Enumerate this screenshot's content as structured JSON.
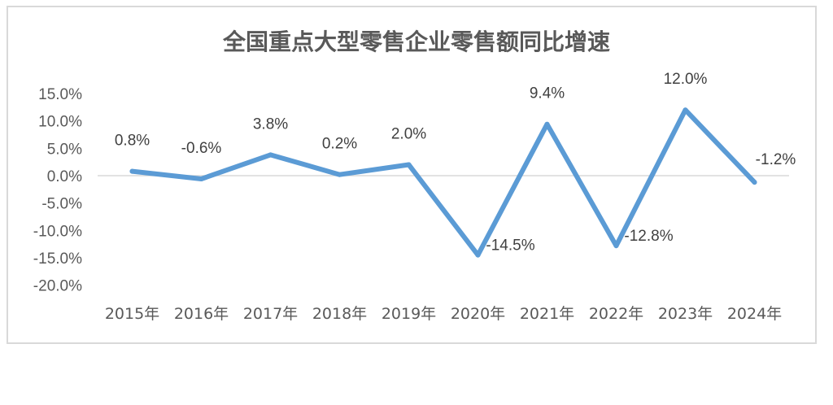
{
  "chart_data": {
    "type": "line",
    "title": "全国重点大型零售企业零售额同比增速",
    "categories": [
      "2015年",
      "2016年",
      "2017年",
      "2018年",
      "2019年",
      "2020年",
      "2021年",
      "2022年",
      "2023年",
      "2024年"
    ],
    "series": [
      {
        "values": [
          0.8,
          -0.6,
          3.8,
          0.2,
          2.0,
          -14.5,
          9.4,
          -12.8,
          12.0,
          -1.2
        ]
      }
    ],
    "data_labels": [
      "0.8%",
      "-0.6%",
      "3.8%",
      "0.2%",
      "2.0%",
      "-14.5%",
      "9.4%",
      "-12.8%",
      "12.0%",
      "-1.2%"
    ],
    "y_ticks": [
      15,
      10,
      5,
      0,
      -5,
      -10,
      -15,
      -20
    ],
    "y_tick_labels": [
      "15.0%",
      "10.0%",
      "5.0%",
      "0.0%",
      "-5.0%",
      "-10.0%",
      "-15.0%",
      "-20.0%"
    ],
    "ylim": [
      -20,
      15
    ],
    "grid": false,
    "legend": "none",
    "colors": {
      "line": "#5b9bd5",
      "axis": "#d9d9d9",
      "text": "#595959"
    }
  }
}
